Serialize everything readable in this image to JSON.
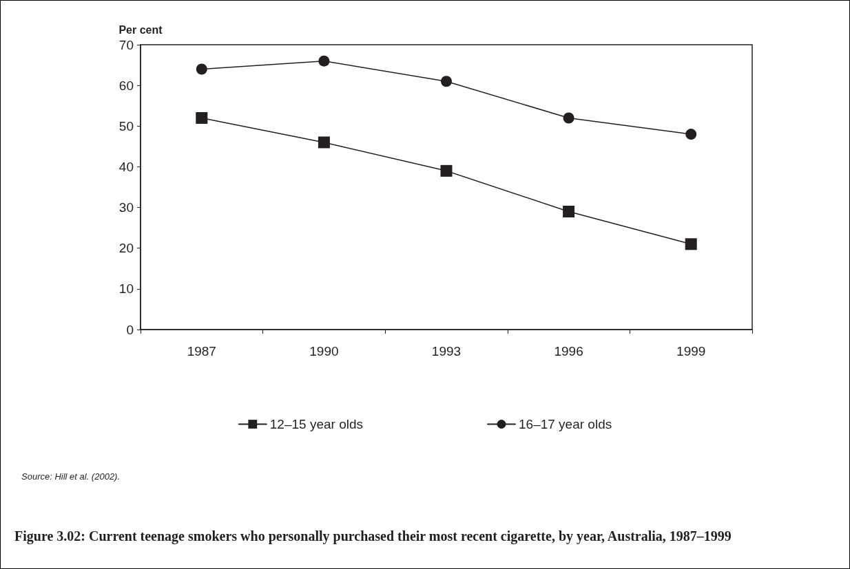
{
  "chart_data": {
    "type": "line",
    "title": "Figure 3.02: Current teenage smokers who personally purchased their most recent cigarette, by year, Australia, 1987–1999",
    "ylabel": "Per cent",
    "categories": [
      "1987",
      "1990",
      "1993",
      "1996",
      "1999"
    ],
    "series": [
      {
        "name": "12–15 year olds",
        "color": "#231f20",
        "marker": "square",
        "values": [
          52,
          46,
          39,
          29,
          21
        ]
      },
      {
        "name": "16–17 year olds",
        "color": "#231f20",
        "marker": "circle",
        "values": [
          64,
          66,
          61,
          52,
          48
        ]
      }
    ],
    "ylim": [
      0,
      70
    ],
    "yticks": [
      0,
      10,
      20,
      30,
      40,
      50,
      60,
      70
    ],
    "grid": false,
    "legend": "bottom",
    "line_style": "solid",
    "annotations": [
      "Source: Hill et al. (2002)."
    ]
  }
}
